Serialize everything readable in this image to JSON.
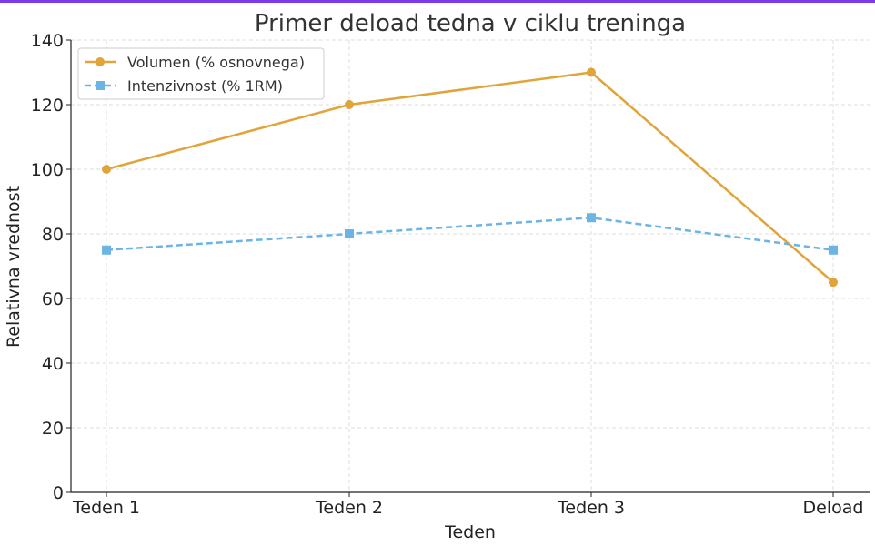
{
  "accent_color": "#7c3aed",
  "chart_data": {
    "type": "line",
    "title": "Primer deload tedna v ciklu treninga",
    "xlabel": "Teden",
    "ylabel": "Relativna vrednost",
    "categories": [
      "Teden 1",
      "Teden 2",
      "Teden 3",
      "Deload"
    ],
    "ylim": [
      0,
      140
    ],
    "yticks": [
      0,
      20,
      40,
      60,
      80,
      100,
      120,
      140
    ],
    "grid": true,
    "legend_position": "top-left",
    "series": [
      {
        "name": "Volumen (% osnovnega)",
        "values": [
          100,
          120,
          130,
          65
        ],
        "color": "#e0a43a",
        "marker": "circle",
        "linestyle": "solid"
      },
      {
        "name": "Intenzivnost (% 1RM)",
        "values": [
          75,
          80,
          85,
          75
        ],
        "color": "#6cb4e4",
        "marker": "square",
        "linestyle": "dashed"
      }
    ]
  }
}
